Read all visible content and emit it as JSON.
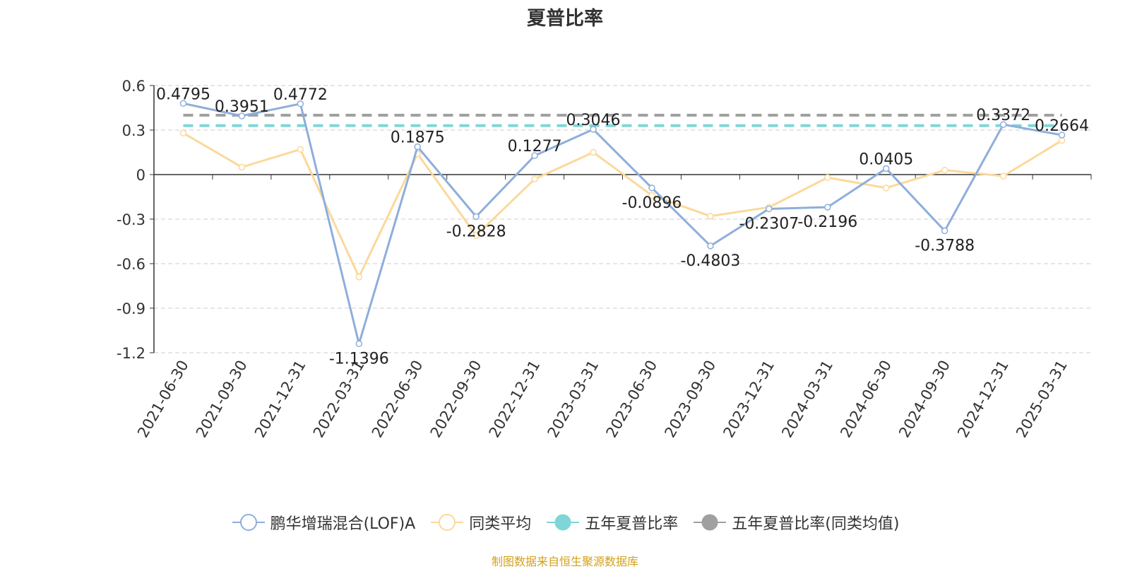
{
  "chart_data": {
    "type": "line",
    "title": "夏普比率",
    "categories": [
      "2021-06-30",
      "2021-09-30",
      "2021-12-31",
      "2022-03-31",
      "2022-06-30",
      "2022-09-30",
      "2022-12-31",
      "2023-03-31",
      "2023-06-30",
      "2023-09-30",
      "2023-12-31",
      "2024-03-31",
      "2024-06-30",
      "2024-09-30",
      "2024-12-31",
      "2025-03-31"
    ],
    "ylim": [
      -1.2,
      0.6
    ],
    "yticks": [
      "0.6",
      "0.3",
      "0",
      "-0.3",
      "-0.6",
      "-0.9",
      "-1.2"
    ],
    "grid": true,
    "legend_position": "bottom",
    "series": [
      {
        "name": "鹏华增瑞混合(LOF)A",
        "color": "#8eaedb",
        "values": [
          0.4795,
          0.3951,
          0.4772,
          -1.1396,
          0.1875,
          -0.2828,
          0.1277,
          0.3046,
          -0.0896,
          -0.4803,
          -0.2307,
          -0.2196,
          0.0405,
          -0.3788,
          0.3372,
          0.2664
        ],
        "labels": [
          "0.4795",
          "0.3951",
          "0.4772",
          "-1.1396",
          "0.1875",
          "-0.2828",
          "0.1277",
          "0.3046",
          "-0.0896",
          "-0.4803",
          "-0.2307",
          "-0.2196",
          "0.0405",
          "-0.3788",
          "0.3372",
          "0.2664"
        ]
      },
      {
        "name": "同类平均",
        "color": "#fbd99b",
        "values": [
          0.28,
          0.05,
          0.17,
          -0.69,
          0.14,
          -0.41,
          -0.03,
          0.15,
          -0.14,
          -0.28,
          -0.22,
          -0.02,
          -0.09,
          0.03,
          -0.01,
          0.23
        ]
      },
      {
        "name": "五年夏普比率",
        "color": "#7fd6d8",
        "style": "dashed",
        "value": 0.33
      },
      {
        "name": "五年夏普比率(同类均值)",
        "color": "#a0a0a0",
        "style": "dashed",
        "value": 0.4
      }
    ]
  },
  "source_note": "制图数据来自恒生聚源数据库"
}
